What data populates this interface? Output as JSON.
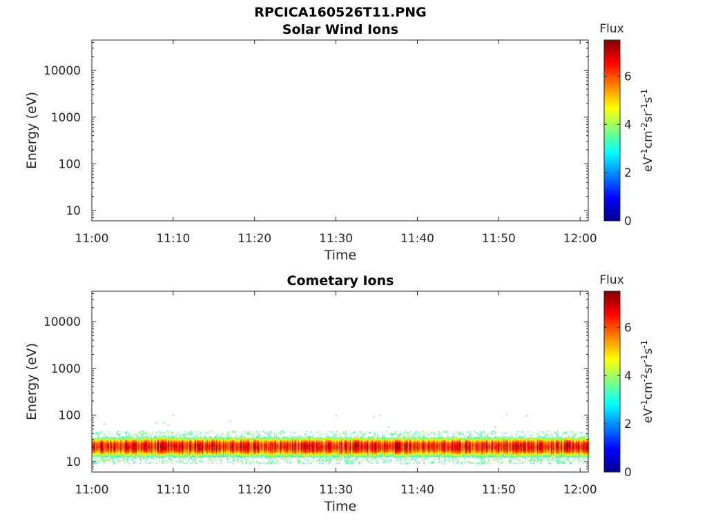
{
  "figure_title": "RPCICA160526T11.PNG",
  "chart_data": [
    {
      "type": "heatmap",
      "title": "Solar Wind Ions",
      "xlabel": "Time",
      "ylabel": "Energy (eV)",
      "x_ticks": [
        "11:00",
        "11:10",
        "11:20",
        "11:30",
        "11:40",
        "11:50",
        "12:00"
      ],
      "xlim": [
        "11:00",
        "12:01"
      ],
      "y_scale": "log",
      "y_ticks": [
        10,
        100,
        1000,
        10000
      ],
      "y_tick_labels": [
        "10",
        "100",
        "1000",
        "10000"
      ],
      "ylim": [
        6,
        45000
      ],
      "grid": false,
      "colorbar": {
        "title": "Flux",
        "label": "eV-1cm-2sr-1s-1",
        "label_parts": [
          "eV",
          "-1",
          "cm",
          "-2",
          "sr",
          "-1",
          "s",
          "-1"
        ],
        "ticks": [
          0,
          2,
          4,
          6
        ],
        "tick_labels": [
          "0",
          "2",
          "4",
          "6"
        ],
        "range": [
          0,
          7.5
        ],
        "colormap": "jet"
      },
      "bands": []
    },
    {
      "type": "heatmap",
      "title": "Cometary Ions",
      "xlabel": "Time",
      "ylabel": "Energy (eV)",
      "x_ticks": [
        "11:00",
        "11:10",
        "11:20",
        "11:30",
        "11:40",
        "11:50",
        "12:00"
      ],
      "xlim": [
        "11:00",
        "12:01"
      ],
      "y_scale": "log",
      "y_ticks": [
        10,
        100,
        1000,
        10000
      ],
      "y_tick_labels": [
        "10",
        "100",
        "1000",
        "10000"
      ],
      "ylim": [
        6,
        45000
      ],
      "grid": false,
      "colorbar": {
        "title": "Flux",
        "label": "eV-1cm-2sr-1s-1",
        "label_parts": [
          "eV",
          "-1",
          "cm",
          "-2",
          "sr",
          "-1",
          "s",
          "-1"
        ],
        "ticks": [
          0,
          2,
          4,
          6
        ],
        "tick_labels": [
          "0",
          "2",
          "4",
          "6"
        ],
        "range": [
          0,
          7.5
        ],
        "colormap": "jet"
      },
      "bands": [
        {
          "time_start": "11:00",
          "time_end": "12:01",
          "energy_min": 11,
          "energy_max": 40,
          "peak_energy": 22,
          "peak_flux": 6.5
        }
      ]
    }
  ]
}
